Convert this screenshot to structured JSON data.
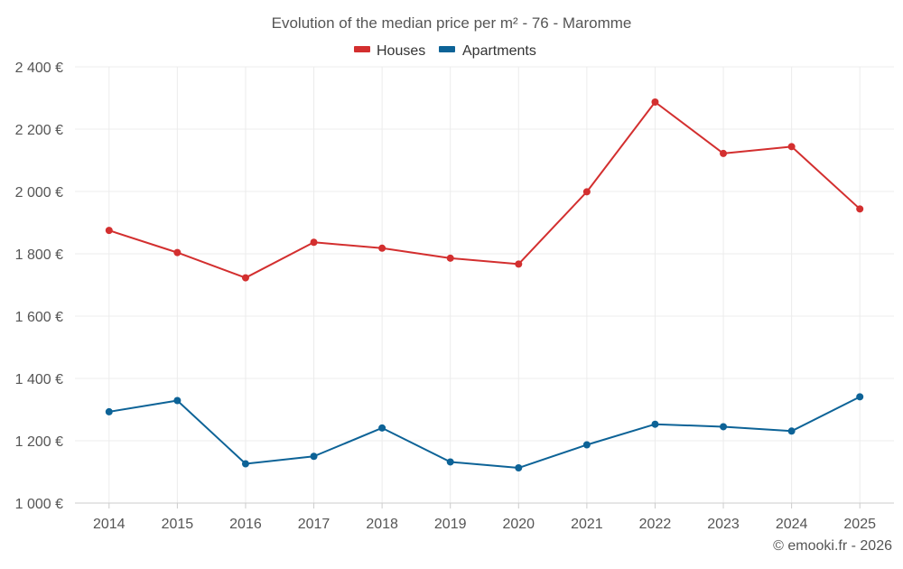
{
  "chart_data": {
    "type": "line",
    "title": "Evolution of the median price per m² - 76 - Maromme",
    "xlabel": "",
    "ylabel": "",
    "categories": [
      "2014",
      "2015",
      "2016",
      "2017",
      "2018",
      "2019",
      "2020",
      "2021",
      "2022",
      "2023",
      "2024",
      "2025"
    ],
    "ylim": [
      1000,
      2400
    ],
    "y_ticks": [
      1000,
      1200,
      1400,
      1600,
      1800,
      2000,
      2200,
      2400
    ],
    "y_tick_labels": [
      "1 000 €",
      "1 200 €",
      "1 400 €",
      "1 600 €",
      "1 800 €",
      "2 000 €",
      "2 200 €",
      "2 400 €"
    ],
    "grid": true,
    "legend_position": "top-center",
    "series": [
      {
        "name": "Houses",
        "color": "#d32f2f",
        "values": [
          1875,
          1804,
          1723,
          1837,
          1818,
          1786,
          1767,
          1999,
          2287,
          2122,
          2144,
          1944
        ]
      },
      {
        "name": "Apartments",
        "color": "#0d6397",
        "values": [
          1293,
          1329,
          1126,
          1150,
          1241,
          1132,
          1113,
          1187,
          1253,
          1245,
          1231,
          1341
        ]
      }
    ],
    "credit": "© emooki.fr - 2026"
  }
}
